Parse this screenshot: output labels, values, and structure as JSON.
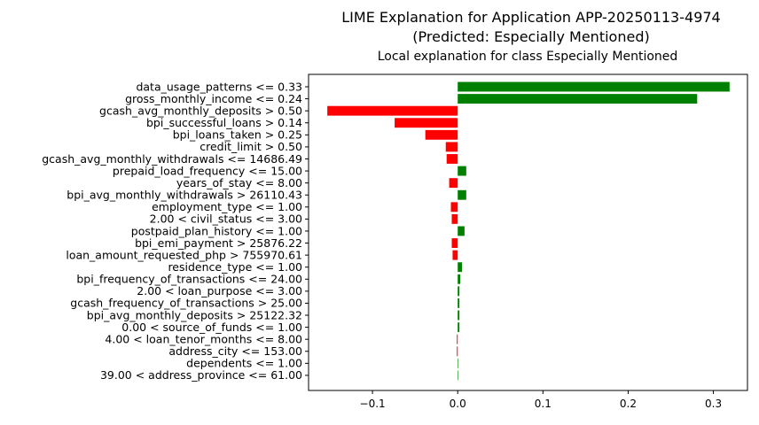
{
  "figure": {
    "suptitle_line1": "LIME Explanation for Application APP-20250113-4974",
    "suptitle_line2": "(Predicted: Especially Mentioned)"
  },
  "chart_data": {
    "type": "bar",
    "orientation": "horizontal",
    "title": "Local explanation for class Especially Mentioned",
    "xlabel": "",
    "ylabel": "",
    "xlim": [
      -0.175,
      0.34
    ],
    "xticks": [
      -0.1,
      0.0,
      0.1,
      0.2,
      0.3
    ],
    "xtick_labels": [
      "−0.1",
      "0.0",
      "0.1",
      "0.2",
      "0.3"
    ],
    "grid": false,
    "positive_color": "#008000",
    "negative_color": "#ff0000",
    "categories": [
      "data_usage_patterns <= 0.33",
      "gross_monthly_income <= 0.24",
      "gcash_avg_monthly_deposits > 0.50",
      "bpi_successful_loans > 0.14",
      "bpi_loans_taken > 0.25",
      "credit_limit > 0.50",
      "gcash_avg_monthly_withdrawals <= 14686.49",
      "prepaid_load_frequency <= 15.00",
      "years_of_stay <= 8.00",
      "bpi_avg_monthly_withdrawals > 26110.43",
      "employment_type <= 1.00",
      "2.00 < civil_status <= 3.00",
      "postpaid_plan_history <= 1.00",
      "bpi_emi_payment > 25876.22",
      "loan_amount_requested_php > 755970.61",
      "residence_type <= 1.00",
      "bpi_frequency_of_transactions <= 24.00",
      "2.00 < loan_purpose <= 3.00",
      "gcash_frequency_of_transactions > 25.00",
      "bpi_avg_monthly_deposits > 25122.32",
      "0.00 < source_of_funds <= 1.00",
      "4.00 < loan_tenor_months <= 8.00",
      "address_city <= 153.00",
      "dependents <= 1.00",
      "39.00 < address_province <= 61.00"
    ],
    "values": [
      0.319,
      0.281,
      -0.153,
      -0.074,
      -0.038,
      -0.014,
      -0.013,
      0.01,
      -0.01,
      0.01,
      -0.008,
      -0.007,
      0.008,
      -0.007,
      -0.006,
      0.005,
      0.003,
      0.002,
      0.002,
      0.002,
      0.002,
      -0.001,
      -0.001,
      0.0006,
      0.0005
    ]
  }
}
